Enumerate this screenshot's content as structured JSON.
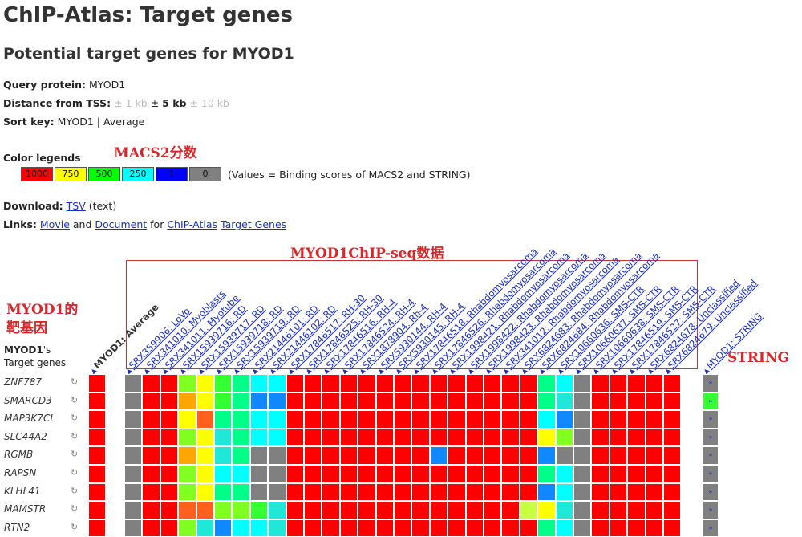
{
  "page": {
    "title": "ChIP-Atlas: Target genes",
    "subtitle": "Potential target genes for MYOD1"
  },
  "query": {
    "label": "Query protein:",
    "value": "MYOD1"
  },
  "distance": {
    "label": "Distance from TSS:",
    "opt1": "± 1 kb",
    "sep": "±",
    "current": "5 kb",
    "opt3": "± 10 kb"
  },
  "sortkey": {
    "label": "Sort key:",
    "value": "MYOD1 | Average"
  },
  "legend": {
    "label": "Color legends",
    "items": [
      {
        "text": "1000",
        "color": "#ff0000"
      },
      {
        "text": "750",
        "color": "#ffff00"
      },
      {
        "text": "500",
        "color": "#00ff00"
      },
      {
        "text": "250",
        "color": "#00ffff"
      },
      {
        "text": "1",
        "color": "#0000ff"
      },
      {
        "text": "0",
        "color": "#808080"
      }
    ],
    "note": "(Values = Binding scores of MACS2 and STRING)"
  },
  "download": {
    "label": "Download:",
    "link": "TSV",
    "suffix": "(text)"
  },
  "links": {
    "label": "Links:",
    "movie": "Movie",
    "and": "and",
    "document": "Document",
    "for": "for",
    "chipatlas": "ChIP-Atlas",
    "targetgenes": "Target Genes"
  },
  "annotations": {
    "macs2": "MACS2分数",
    "chipseq": "MYOD1ChIP-seq数据",
    "target_line1": "MYOD1的",
    "target_line2": "靶基因",
    "string": "STRING"
  },
  "table": {
    "corner_bold": "MYOD1",
    "corner_rest": "'s",
    "corner_line2": "Target genes",
    "average_header": "MYOD1: Average",
    "string_header": "MYOD1: STRING",
    "columns": [
      "SRX359906: LoVo",
      "SRX341010: Myoblasts",
      "SRX341011: Myotube",
      "SRX15939716: RD",
      "SRX15939717: RD",
      "SRX15939718: RD",
      "SRX15939719: RD",
      "SRX21446101: RD",
      "SRX21446102: RD",
      "SRX17846517: RH-30",
      "SRX17846525: RH-30",
      "SRX17846516: RH-4",
      "SRX17846524: RH-4",
      "SRX1878904: Rh-4",
      "SRX5930144: RH-4",
      "SRX5930145: RH-4",
      "SRX17846518: Rhabdomyosarcoma",
      "SRX17846526: Rhabdomyosarcoma",
      "SRX1998421: Rhabdomyosarcoma",
      "SRX1998422: Rhabdomyosarcoma",
      "SRX1998423: Rhabdomyosarcoma",
      "SRX341012: Rhabdomyosarcoma",
      "SRX6824683: Rhabdomyosarcoma",
      "SRX6824684: Rhabdomyosarcoma",
      "SRX10660636: SMS-CTR",
      "SRX10660637: SMS-CTR",
      "SRX10660638: SMS-CTR",
      "SRX17846519: SMS-CTR",
      "SRX17846527: SMS-CTR",
      "SRX6824678: Unclassified",
      "SRX6824679: Unclassified"
    ],
    "string_button": "»",
    "refresh_icon": "↻",
    "genes": [
      "ZNF787",
      "SMARCD3",
      "MAP3K7CL",
      "SLC44A2",
      "RGMB",
      "RAPSN",
      "KLHL41",
      "MAMSTR",
      "RTN2"
    ],
    "colors": {
      "R": "#ff0000",
      "G": "#808080",
      "Y": "#ffff00",
      "O": "#ffa500",
      "o": "#ff6020",
      "g": "#33ff33",
      "lg": "#80ff20",
      "sg": "#00ff88",
      "c": "#00ffff",
      "lc": "#20e8d8",
      "b": "#1088ff",
      "bb": "#2233ff",
      "yg": "#c8ff40"
    },
    "average_colors": [
      "R",
      "R",
      "R",
      "R",
      "R",
      "R",
      "R",
      "R",
      "R"
    ],
    "string_colors": [
      "G",
      "g",
      "G",
      "G",
      "G",
      "G",
      "G",
      "G",
      "G"
    ],
    "cells": [
      [
        "G",
        "R",
        "R",
        "lg",
        "Y",
        "g",
        "sg",
        "c",
        "c",
        "R",
        "R",
        "R",
        "R",
        "R",
        "R",
        "R",
        "R",
        "R",
        "R",
        "R",
        "R",
        "R",
        "R",
        "sg",
        "c",
        "G",
        "R",
        "R",
        "R",
        "R",
        "R"
      ],
      [
        "G",
        "R",
        "R",
        "O",
        "Y",
        "g",
        "sg",
        "b",
        "b",
        "R",
        "R",
        "R",
        "R",
        "R",
        "R",
        "R",
        "R",
        "R",
        "R",
        "R",
        "R",
        "R",
        "R",
        "sg",
        "lc",
        "G",
        "R",
        "R",
        "R",
        "R",
        "R"
      ],
      [
        "G",
        "R",
        "R",
        "Y",
        "o",
        "sg",
        "sg",
        "c",
        "c",
        "R",
        "R",
        "R",
        "R",
        "R",
        "R",
        "R",
        "R",
        "R",
        "R",
        "R",
        "R",
        "R",
        "R",
        "c",
        "b",
        "G",
        "R",
        "R",
        "R",
        "R",
        "R"
      ],
      [
        "G",
        "R",
        "R",
        "lg",
        "Y",
        "lc",
        "sg",
        "c",
        "c",
        "R",
        "R",
        "R",
        "R",
        "R",
        "R",
        "R",
        "R",
        "R",
        "R",
        "R",
        "R",
        "R",
        "R",
        "Y",
        "lg",
        "G",
        "R",
        "R",
        "R",
        "R",
        "R"
      ],
      [
        "G",
        "R",
        "R",
        "O",
        "Y",
        "lc",
        "sg",
        "G",
        "G",
        "R",
        "R",
        "R",
        "R",
        "R",
        "R",
        "R",
        "R",
        "b",
        "R",
        "R",
        "R",
        "R",
        "R",
        "b",
        "G",
        "G",
        "R",
        "R",
        "R",
        "R",
        "R"
      ],
      [
        "G",
        "R",
        "R",
        "lg",
        "Y",
        "c",
        "c",
        "G",
        "G",
        "R",
        "R",
        "R",
        "R",
        "R",
        "R",
        "R",
        "R",
        "R",
        "R",
        "R",
        "R",
        "R",
        "R",
        "sg",
        "c",
        "G",
        "R",
        "R",
        "R",
        "R",
        "R"
      ],
      [
        "G",
        "R",
        "R",
        "lg",
        "Y",
        "sg",
        "sg",
        "G",
        "G",
        "R",
        "R",
        "R",
        "R",
        "R",
        "R",
        "R",
        "R",
        "R",
        "R",
        "R",
        "R",
        "R",
        "R",
        "b",
        "c",
        "G",
        "R",
        "R",
        "R",
        "R",
        "R"
      ],
      [
        "G",
        "R",
        "R",
        "o",
        "o",
        "lg",
        "lg",
        "g",
        "lc",
        "R",
        "R",
        "R",
        "R",
        "R",
        "R",
        "R",
        "R",
        "R",
        "R",
        "R",
        "R",
        "R",
        "yg",
        "Y",
        "lc",
        "G",
        "R",
        "R",
        "R",
        "R",
        "R"
      ],
      [
        "G",
        "R",
        "R",
        "lg",
        "lc",
        "b",
        "c",
        "c",
        "lc",
        "R",
        "R",
        "R",
        "R",
        "R",
        "R",
        "R",
        "R",
        "R",
        "R",
        "R",
        "R",
        "R",
        "R",
        "sg",
        "c",
        "G",
        "R",
        "R",
        "R",
        "R",
        "R"
      ]
    ]
  }
}
